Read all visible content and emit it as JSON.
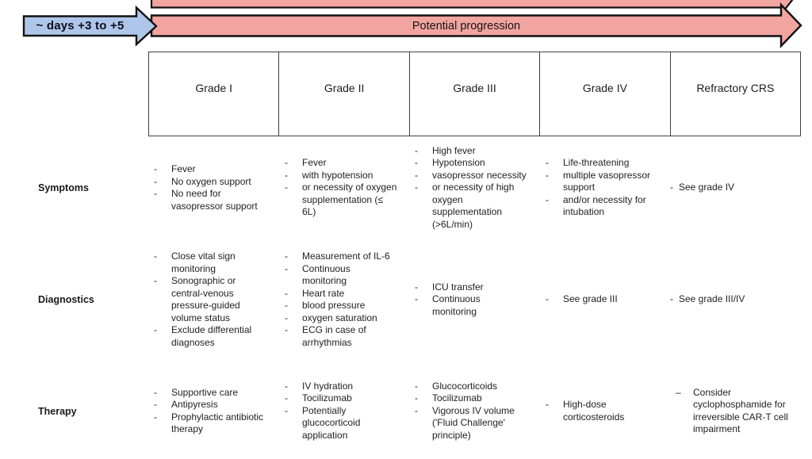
{
  "figure": {
    "timeline": {
      "phase_label": "~ days +3 to +5",
      "progression_label": "Potential progression"
    },
    "colors": {
      "phase_arrow_fill": "#aec6e9",
      "progression_arrow_fill": "#f2a4a0",
      "arrow_outline": "#121212",
      "table_border": "#3f3f3f",
      "text": "#222222"
    },
    "table": {
      "column_headers": [
        "Grade I",
        "Grade II",
        "Grade III",
        "Grade IV",
        "Refractory CRS"
      ],
      "rows": [
        {
          "label": "Symptoms",
          "cells": [
            {
              "items": [
                {
                  "m": "-",
                  "t": "Fever"
                },
                {
                  "m": "-",
                  "t": "No oxygen support"
                },
                {
                  "m": "-",
                  "t": "No need for\nvasopressor support"
                }
              ]
            },
            {
              "items": [
                {
                  "m": "-",
                  "t": "Fever"
                },
                {
                  "m": "-",
                  "t": "with hypotension"
                },
                {
                  "m": "-",
                  "t": "or necessity of oxygen\nsupplementation (≤\n6L)"
                }
              ]
            },
            {
              "items": [
                {
                  "m": "-",
                  "t": "High fever"
                },
                {
                  "m": "-",
                  "t": "Hypotension"
                },
                {
                  "m": "-",
                  "t": "vasopressor necessity"
                },
                {
                  "m": "-",
                  "t": "or necessity of high\noxygen\nsupplementation\n(>6L/min)"
                }
              ]
            },
            {
              "items": [
                {
                  "m": "-",
                  "t": "Life-threatening"
                },
                {
                  "m": "-",
                  "t": "multiple vasopressor\nsupport"
                },
                {
                  "m": "-",
                  "t": "and/or necessity for\nintubation"
                }
              ]
            },
            {
              "items": [
                {
                  "m": "-",
                  "t": "See grade IV",
                  "s": "tight"
                }
              ]
            }
          ]
        },
        {
          "label": "Diagnostics",
          "cells": [
            {
              "items": [
                {
                  "m": "-",
                  "t": "Close vital sign\nmonitoring"
                },
                {
                  "m": "-",
                  "t": "Sonographic or\ncentral-venous\npressure-guided\nvolume status"
                },
                {
                  "m": "-",
                  "t": "Exclude differential\ndiagnoses"
                }
              ]
            },
            {
              "items": [
                {
                  "m": "-",
                  "t": "Measurement of IL-6"
                },
                {
                  "m": "-",
                  "t": "Continuous\nmonitoring"
                },
                {
                  "m": "-",
                  "t": "Heart rate"
                },
                {
                  "m": "-",
                  "t": "blood pressure"
                },
                {
                  "m": "-",
                  "t": "oxygen saturation"
                },
                {
                  "m": "-",
                  "t": "ECG in case of\narrhythmias"
                }
              ]
            },
            {
              "items": [
                {
                  "m": "-",
                  "t": "ICU transfer"
                },
                {
                  "m": "-",
                  "t": "Continuous\nmonitoring"
                }
              ]
            },
            {
              "items": [
                {
                  "m": "-",
                  "t": "See grade III"
                }
              ]
            },
            {
              "items": [
                {
                  "m": "-",
                  "t": "See grade III/IV",
                  "s": "tight"
                }
              ]
            }
          ]
        },
        {
          "label": "Therapy",
          "cells": [
            {
              "items": [
                {
                  "m": "-",
                  "t": "Supportive care"
                },
                {
                  "m": "-",
                  "t": "Antipyresis"
                },
                {
                  "m": "-",
                  "t": "Prophylactic antibiotic\ntherapy"
                }
              ]
            },
            {
              "items": [
                {
                  "m": "-",
                  "t": "IV hydration"
                },
                {
                  "m": "-",
                  "t": "Tocilizumab"
                },
                {
                  "m": "-",
                  "t": "Potentially\nglucocorticoid\napplication"
                }
              ]
            },
            {
              "items": [
                {
                  "m": "-",
                  "t": "Glucocorticoids"
                },
                {
                  "m": "-",
                  "t": "Tocilizumab"
                },
                {
                  "m": "-",
                  "t": "Vigorous IV volume\n('Fluid Challenge'\nprinciple)"
                }
              ]
            },
            {
              "items": [
                {
                  "m": "-",
                  "t": "High-dose\ncorticosteroids"
                }
              ]
            },
            {
              "items": [
                {
                  "m": "–",
                  "t": "Consider\ncyclophosphamide for\nirreversible CAR-T cell\nimpairment"
                }
              ]
            }
          ]
        }
      ]
    }
  }
}
